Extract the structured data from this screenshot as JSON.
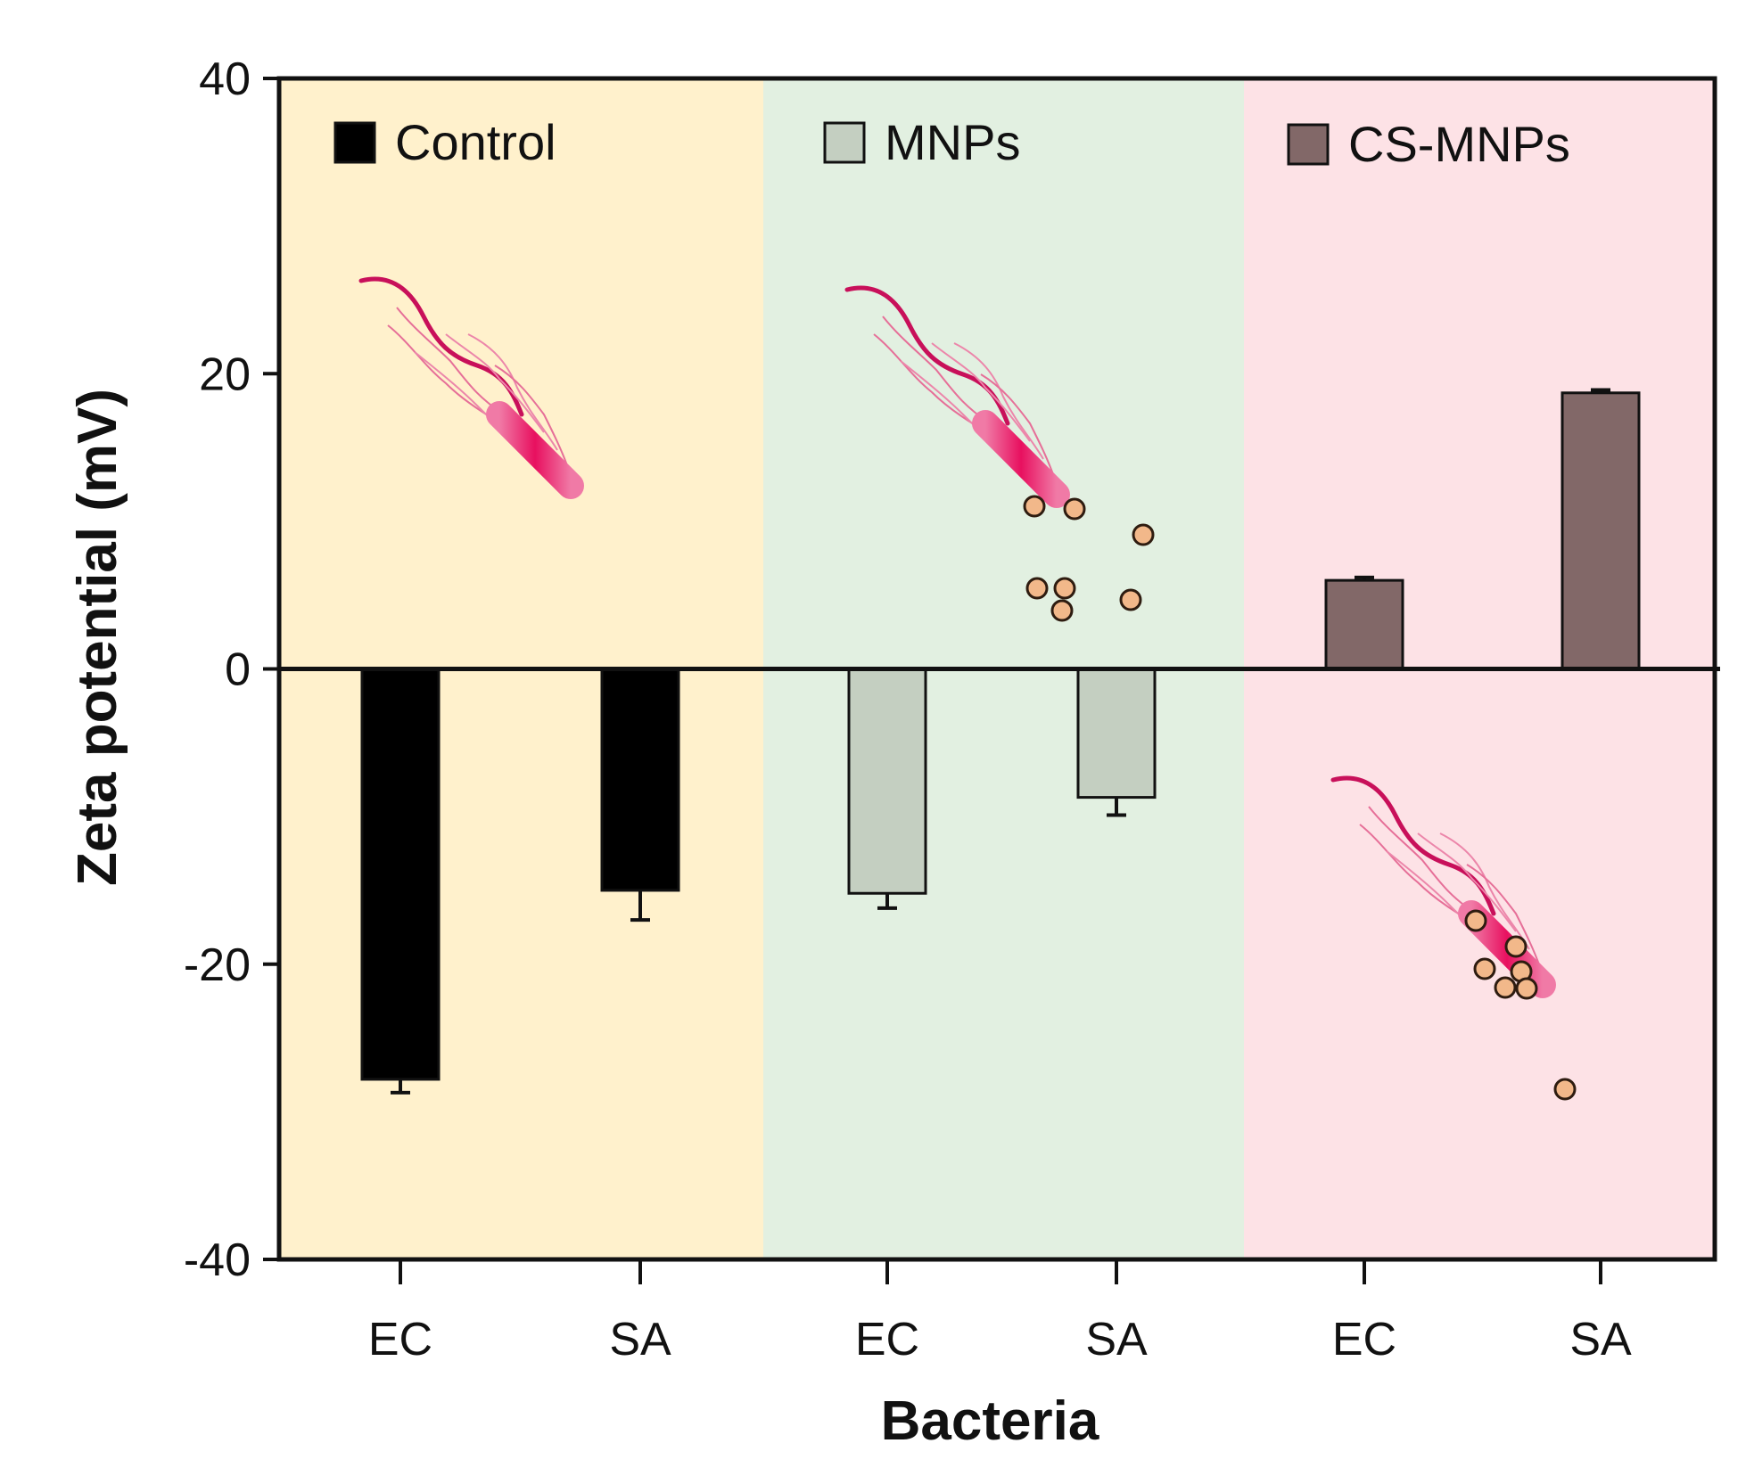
{
  "chart_data": {
    "type": "bar",
    "title": "",
    "xlabel": "Bacteria",
    "ylabel": "Zeta potential (mV)",
    "ylim": [
      -40,
      40
    ],
    "yticks": [
      40,
      20,
      0,
      -20,
      -40
    ],
    "ytick_labels": [
      "40",
      "20",
      "0",
      "-20",
      "-40"
    ],
    "groups": [
      {
        "name": "Control",
        "color": "#000000",
        "background": "#fff1cc",
        "categories": [
          "EC",
          "SA"
        ],
        "values": [
          -27.8,
          -15.0
        ],
        "errors": [
          0.9,
          2.0
        ]
      },
      {
        "name": "MNPs",
        "color": "#c4cfc1",
        "background": "#e2f0e1",
        "categories": [
          "EC",
          "SA"
        ],
        "values": [
          -15.2,
          -8.7
        ],
        "errors": [
          1.0,
          1.2
        ]
      },
      {
        "name": "CS-MNPs",
        "color": "#826868",
        "background": "#fde2e6",
        "categories": [
          "EC",
          "SA"
        ],
        "values": [
          6.0,
          18.7
        ],
        "errors": [
          0.2,
          0.2
        ]
      }
    ],
    "legend": [
      "Control",
      "MNPs",
      "CS-MNPs"
    ],
    "legend_position": "top, inside each panel",
    "grid": false
  }
}
